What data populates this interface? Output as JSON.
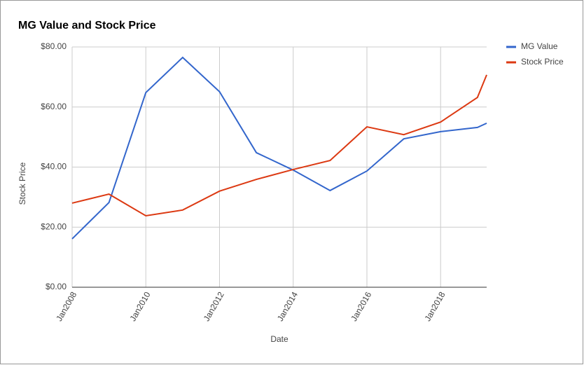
{
  "chart_data": {
    "type": "line",
    "title": "MG Value and Stock Price",
    "x_label": "Date",
    "y_label": "Stock Price",
    "x": [
      "2008-01",
      "2009-01",
      "2010-01",
      "2011-01",
      "2012-01",
      "2013-01",
      "2014-01",
      "2015-01",
      "2016-01",
      "2017-01",
      "2018-01",
      "2019-01",
      "2019-04"
    ],
    "xlim": [
      "2008-01",
      "2019-04"
    ],
    "xticks": [
      {
        "value": "2008-01",
        "label": "Jan2008"
      },
      {
        "value": "2010-01",
        "label": "Jan2010"
      },
      {
        "value": "2012-01",
        "label": "Jan2012"
      },
      {
        "value": "2014-01",
        "label": "Jan2014"
      },
      {
        "value": "2016-01",
        "label": "Jan2016"
      },
      {
        "value": "2018-01",
        "label": "Jan2018"
      }
    ],
    "ylim": [
      0,
      80
    ],
    "yticks": [
      {
        "value": 0,
        "label": "$0.00"
      },
      {
        "value": 20,
        "label": "$20.00"
      },
      {
        "value": 40,
        "label": "$40.00"
      },
      {
        "value": 60,
        "label": "$60.00"
      },
      {
        "value": 80,
        "label": "$80.00"
      }
    ],
    "grid": true,
    "legend": "right",
    "series": [
      {
        "name": "MG Value",
        "color": "#3366cc",
        "values": [
          16.1,
          28.2,
          64.8,
          76.5,
          65.1,
          44.8,
          39.0,
          32.2,
          38.7,
          49.4,
          51.8,
          53.2,
          54.6
        ]
      },
      {
        "name": "Stock Price",
        "color": "#dc3912",
        "values": [
          28.0,
          31.0,
          23.8,
          25.7,
          32.0,
          35.9,
          39.2,
          42.2,
          53.4,
          50.8,
          55.0,
          63.2,
          70.7
        ]
      }
    ]
  }
}
